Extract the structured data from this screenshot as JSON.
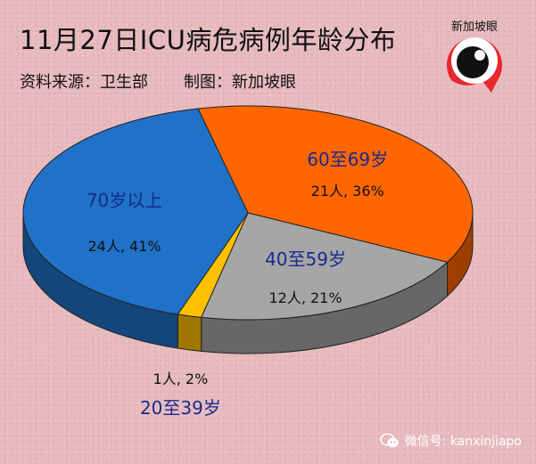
{
  "header": {
    "title": "11月27日ICU病危病例年龄分布",
    "source_label": "资料来源：卫生部",
    "credit_label": "制图：新加坡眼"
  },
  "logo": {
    "text": "新加坡眼",
    "icon": "eye-logo-icon",
    "color": "#e8272e"
  },
  "watermark": {
    "text": "微信号: kanxinjiapo",
    "icon": "wechat-icon"
  },
  "chart_data": {
    "type": "pie",
    "title": "11月27日ICU病危病例年龄分布",
    "style": "3d",
    "slices": [
      {
        "label": "60至69岁",
        "count": 21,
        "percent": 36,
        "value_label": "21人, 36%",
        "color": "#ff6600"
      },
      {
        "label": "40至59岁",
        "count": 12,
        "percent": 21,
        "value_label": "12人, 21%",
        "color": "#a6a6a6"
      },
      {
        "label": "20至39岁",
        "count": 1,
        "percent": 2,
        "value_label": "1人, 2%",
        "color": "#ffc000"
      },
      {
        "label": "70岁以上",
        "count": 24,
        "percent": 41,
        "value_label": "24人, 41%",
        "color": "#1f72c7"
      }
    ]
  }
}
